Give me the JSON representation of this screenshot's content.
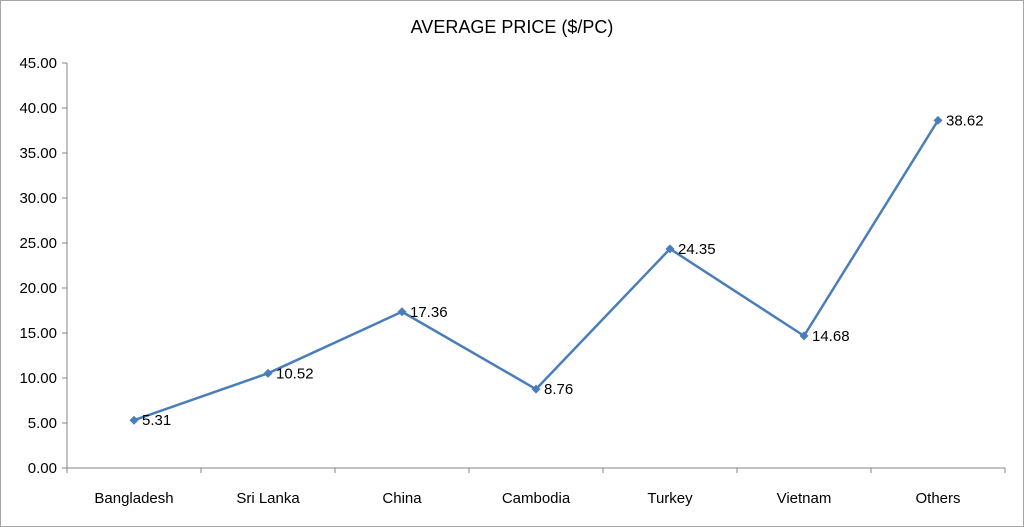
{
  "chart_data": {
    "type": "line",
    "title": "AVERAGE PRICE ($/PC)",
    "xlabel": "",
    "ylabel": "",
    "categories": [
      "Bangladesh",
      "Sri Lanka",
      "China",
      "Cambodia",
      "Turkey",
      "Vietnam",
      "Others"
    ],
    "series": [
      {
        "values": [
          5.31,
          10.52,
          17.36,
          8.76,
          24.35,
          14.68,
          38.62
        ],
        "value_labels": [
          "5.31",
          "10.52",
          "17.36",
          "8.76",
          "24.35",
          "14.68",
          "38.62"
        ],
        "color": "#4a7ebb",
        "marker": "diamond"
      }
    ],
    "ylim": [
      0,
      45
    ],
    "y_ticks": [
      "0.00",
      "5.00",
      "10.00",
      "15.00",
      "20.00",
      "25.00",
      "30.00",
      "35.00",
      "40.00",
      "45.00"
    ],
    "grid": false,
    "legend": "none"
  }
}
